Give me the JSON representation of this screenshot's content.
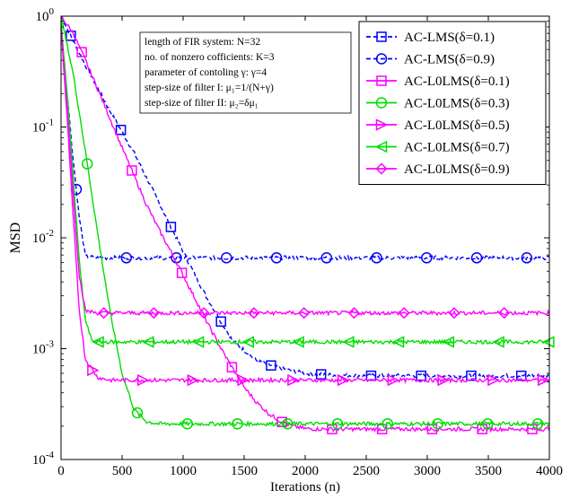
{
  "chart_data": {
    "type": "line",
    "title": "",
    "xlabel": "Iterations (n)",
    "ylabel": "MSD",
    "xlim": [
      0,
      4000
    ],
    "ylim": [
      0.0001,
      1
    ],
    "yscale": "log",
    "grid": false,
    "legend_position": "top-right",
    "x_ticks": [
      0,
      500,
      1000,
      1500,
      2000,
      2500,
      3000,
      3500,
      4000
    ],
    "y_tick_exponents": [
      -4,
      -3,
      -2,
      -1,
      0
    ],
    "annotation_lines": [
      "length of FIR system: N=32",
      "no. of nonzero cofficients: K=3",
      "parameter of contoling γ: γ=4",
      "step-size of filter I: μ₁=1/(N+γ)",
      "step-size of filter II: μ₂=δμ₁"
    ],
    "series": [
      {
        "name": "AC-LMS(δ=0.1)",
        "color": "#0000ff",
        "dashed": true,
        "marker": "square",
        "x": [
          0,
          200,
          400,
          600,
          800,
          1000,
          1200,
          1400,
          1600,
          1800,
          2000,
          2200,
          2500,
          3000,
          3500,
          4000
        ],
        "y": [
          1.0,
          0.36,
          0.14,
          0.058,
          0.021,
          0.0075,
          0.0028,
          0.0012,
          0.00078,
          0.00066,
          0.0006,
          0.00058,
          0.00057,
          0.00057,
          0.00057,
          0.00057
        ]
      },
      {
        "name": "AC-LMS(δ=0.9)",
        "color": "#0000ff",
        "dashed": true,
        "marker": "circle",
        "x": [
          0,
          50,
          100,
          150,
          200,
          300,
          500,
          1000,
          2000,
          3000,
          4000
        ],
        "y": [
          0.8,
          0.2,
          0.05,
          0.015,
          0.0068,
          0.0066,
          0.0066,
          0.0066,
          0.0066,
          0.0066,
          0.0066
        ]
      },
      {
        "name": "AC-L0LMS(δ=0.1)",
        "color": "#ff00ff",
        "dashed": false,
        "marker": "square",
        "x": [
          0,
          100,
          200,
          300,
          400,
          500,
          600,
          700,
          800,
          900,
          1000,
          1100,
          1200,
          1300,
          1400,
          1500,
          1600,
          1700,
          1800,
          1900,
          2000,
          2100,
          2200,
          2500,
          3000,
          3500,
          4000
        ],
        "y": [
          1.0,
          0.7,
          0.4,
          0.22,
          0.12,
          0.065,
          0.036,
          0.02,
          0.012,
          0.0075,
          0.0046,
          0.0028,
          0.0017,
          0.00105,
          0.00068,
          0.00045,
          0.00033,
          0.00026,
          0.00022,
          0.0002,
          0.00019,
          0.000188,
          0.000188,
          0.000188,
          0.000188,
          0.000188,
          0.000188
        ]
      },
      {
        "name": "AC-L0LMS(δ=0.3)",
        "color": "#00dd00",
        "dashed": false,
        "marker": "circle",
        "x": [
          0,
          100,
          200,
          300,
          400,
          500,
          600,
          700,
          800,
          1000,
          1500,
          2000,
          2500,
          3000,
          3500,
          4000
        ],
        "y": [
          1.0,
          0.3,
          0.06,
          0.011,
          0.0022,
          0.0006,
          0.00028,
          0.00022,
          0.00021,
          0.00021,
          0.00021,
          0.00021,
          0.00021,
          0.00021,
          0.00021,
          0.00021
        ]
      },
      {
        "name": "AC-L0LMS(δ=0.5)",
        "color": "#ff00ff",
        "dashed": false,
        "marker": "triangle-right",
        "x": [
          0,
          50,
          100,
          150,
          200,
          300,
          400,
          600,
          1000,
          2000,
          3000,
          4000
        ],
        "y": [
          0.8,
          0.12,
          0.015,
          0.0022,
          0.0008,
          0.00055,
          0.00052,
          0.00052,
          0.00052,
          0.00052,
          0.00052,
          0.00052
        ]
      },
      {
        "name": "AC-L0LMS(δ=0.7)",
        "color": "#00dd00",
        "dashed": false,
        "marker": "triangle-left",
        "x": [
          0,
          50,
          100,
          150,
          200,
          250,
          300,
          500,
          1000,
          2000,
          3000,
          4000
        ],
        "y": [
          0.9,
          0.2,
          0.035,
          0.006,
          0.0018,
          0.0012,
          0.00115,
          0.00115,
          0.00115,
          0.00115,
          0.00115,
          0.00115
        ]
      },
      {
        "name": "AC-L0LMS(δ=0.9)",
        "color": "#ff00ff",
        "dashed": false,
        "marker": "diamond",
        "x": [
          0,
          50,
          100,
          150,
          200,
          300,
          500,
          1000,
          2000,
          3000,
          4000
        ],
        "y": [
          0.8,
          0.15,
          0.025,
          0.0045,
          0.0022,
          0.0021,
          0.0021,
          0.0021,
          0.0021,
          0.0021,
          0.0021
        ]
      }
    ]
  }
}
